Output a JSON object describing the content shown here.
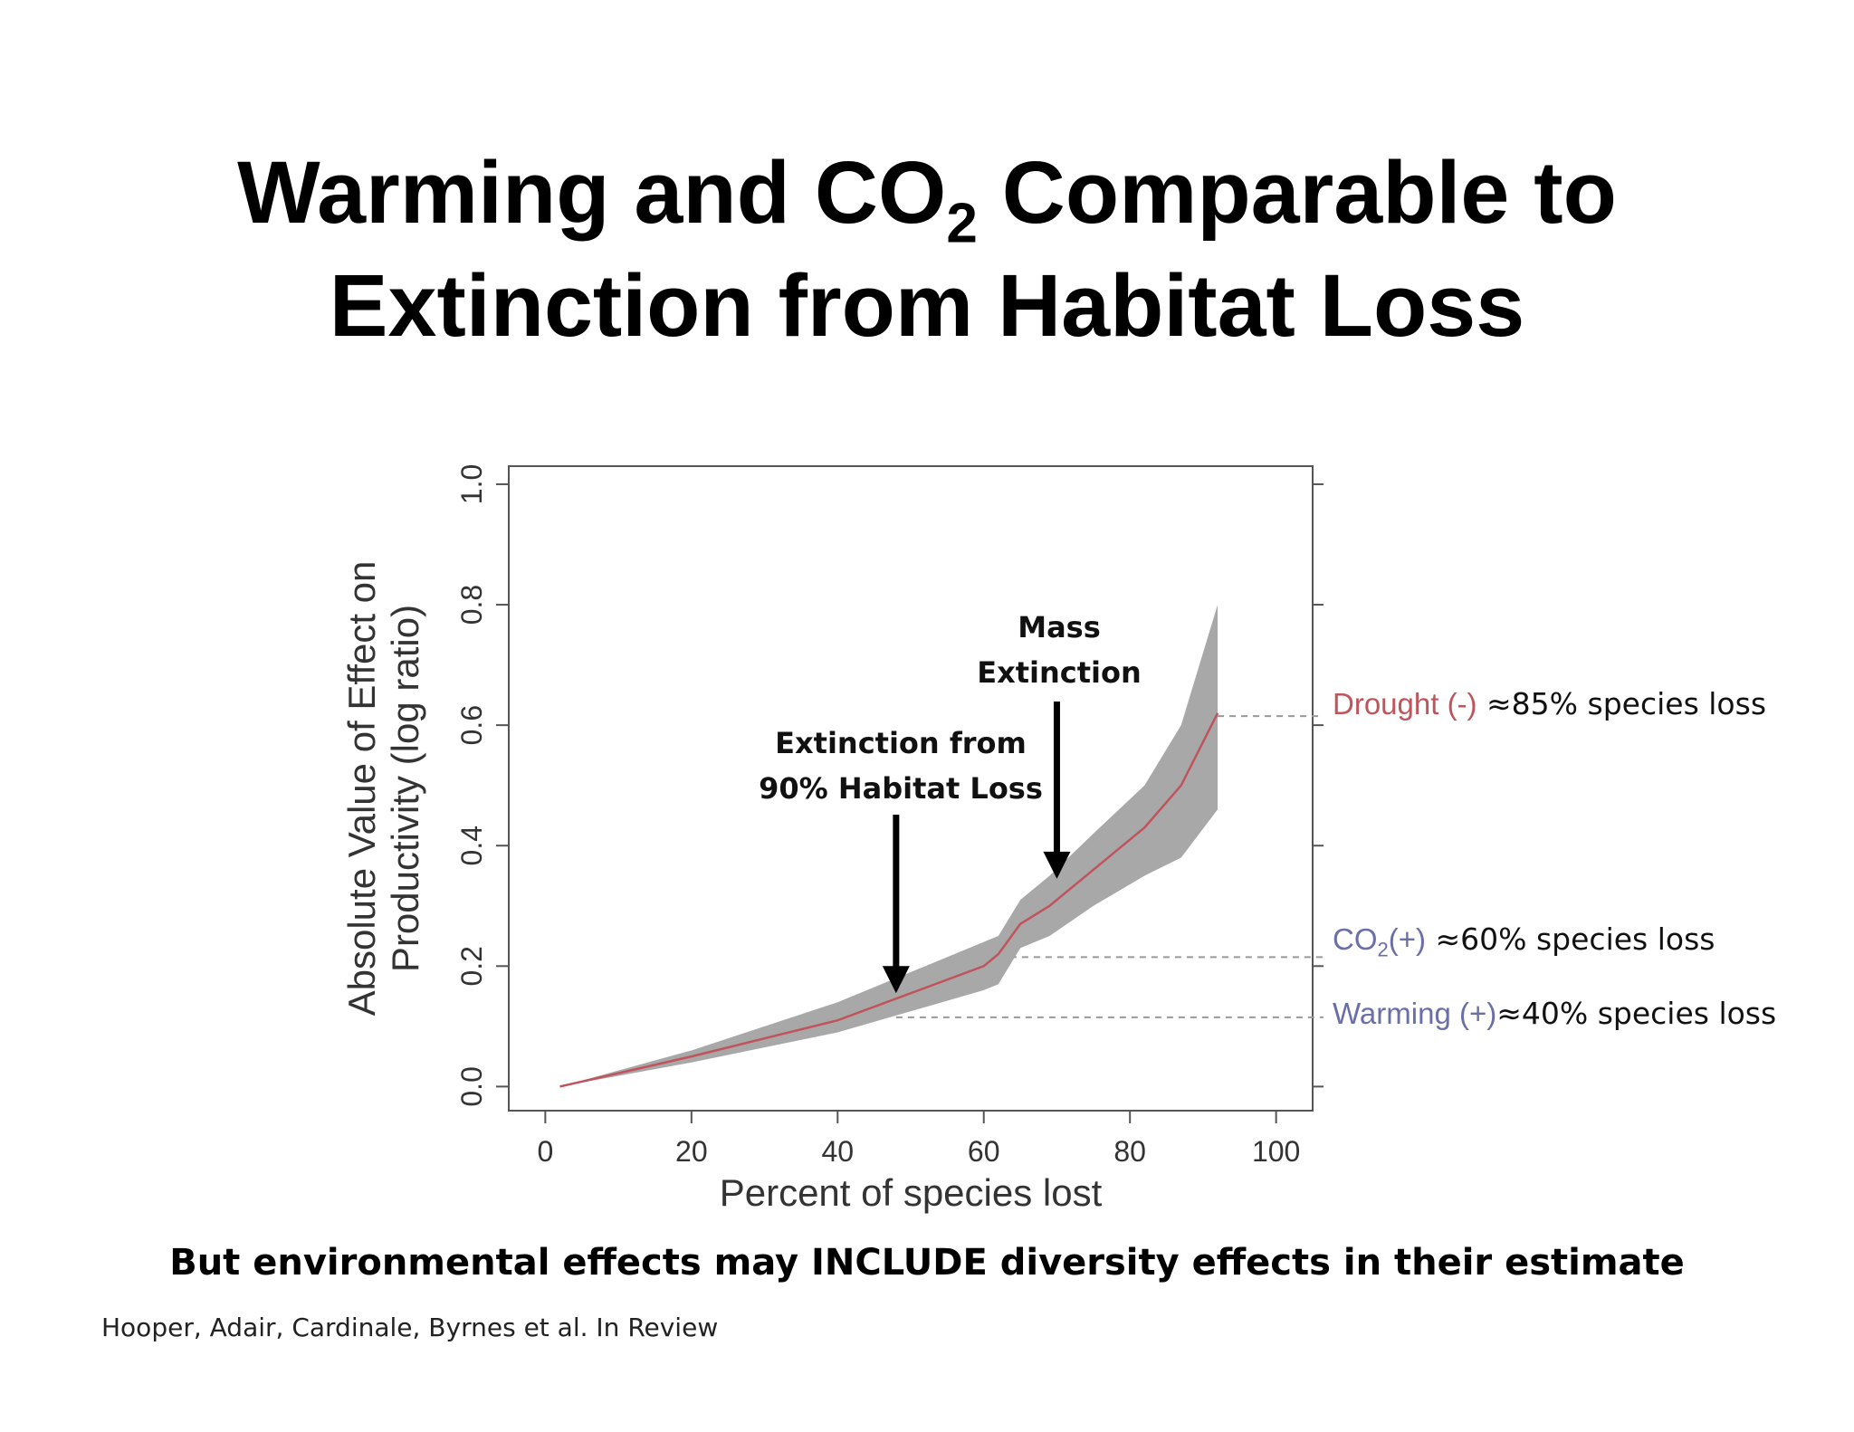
{
  "slide": {
    "title_line1_pre": "Warming and CO",
    "title_line1_sub": "2",
    "title_line1_post": " Comparable to",
    "title_line2": "Extinction from Habitat Loss",
    "footnote": "But environmental effects may INCLUDE diversity effects in their estimate",
    "citation": "Hooper, Adair, Cardinale, Byrnes et al. In Review"
  },
  "annotations": {
    "habitat_loss": {
      "line1": "Extinction from",
      "line2": "90% Habitat Loss"
    },
    "mass_extinction": {
      "line1": "Mass",
      "line2": "Extinction"
    }
  },
  "reference_labels": {
    "drought": {
      "name": "Drought (-)",
      "extra": " ≈85% species loss"
    },
    "co2": {
      "name_pre": "CO",
      "name_sub": "2",
      "name_post": "(+)",
      "extra": " ≈60% species loss"
    },
    "warming": {
      "name": "Warming (+)",
      "extra": "≈40% species loss"
    }
  },
  "colors": {
    "band": "#a8a8a8",
    "line": "#c0545c",
    "drought": "#c0545c",
    "co2": "#6a6fa8",
    "warming": "#6a6fa8",
    "refline": "#999999",
    "axis": "#555555"
  },
  "chart_data": {
    "type": "line",
    "xlabel": "Percent of species lost",
    "ylabel": [
      "Absolute Value of Effect on",
      "Productivity (log ratio)"
    ],
    "xlim": [
      -5,
      105
    ],
    "ylim": [
      -0.04,
      1.03
    ],
    "xticks": [
      0,
      20,
      40,
      60,
      80,
      100
    ],
    "yticks": [
      0.0,
      0.2,
      0.4,
      0.6,
      0.8,
      1.0
    ],
    "grid": false,
    "series": [
      {
        "x": [
          2,
          20,
          40,
          60,
          62,
          65,
          69,
          75,
          82,
          87,
          92
        ],
        "y": [
          0.0,
          0.05,
          0.11,
          0.2,
          0.22,
          0.27,
          0.3,
          0.36,
          0.43,
          0.5,
          0.62
        ],
        "lower": [
          0.0,
          0.04,
          0.09,
          0.16,
          0.17,
          0.23,
          0.25,
          0.3,
          0.35,
          0.38,
          0.46
        ],
        "upper": [
          0.0,
          0.06,
          0.14,
          0.24,
          0.25,
          0.31,
          0.35,
          0.42,
          0.5,
          0.6,
          0.8
        ]
      }
    ],
    "reference_lines": [
      {
        "label": "Drought (-)",
        "x_start": 92,
        "y": 0.615
      },
      {
        "label": "CO2(+)",
        "x_start": 62,
        "y": 0.215
      },
      {
        "label": "Warming (+)",
        "x_start": 48,
        "y": 0.115
      }
    ],
    "arrows": [
      {
        "label": "Extinction from 90% Habitat Loss",
        "x": 48,
        "y_tip": 0.155
      },
      {
        "label": "Mass Extinction",
        "x": 70,
        "y_tip": 0.345
      }
    ]
  }
}
